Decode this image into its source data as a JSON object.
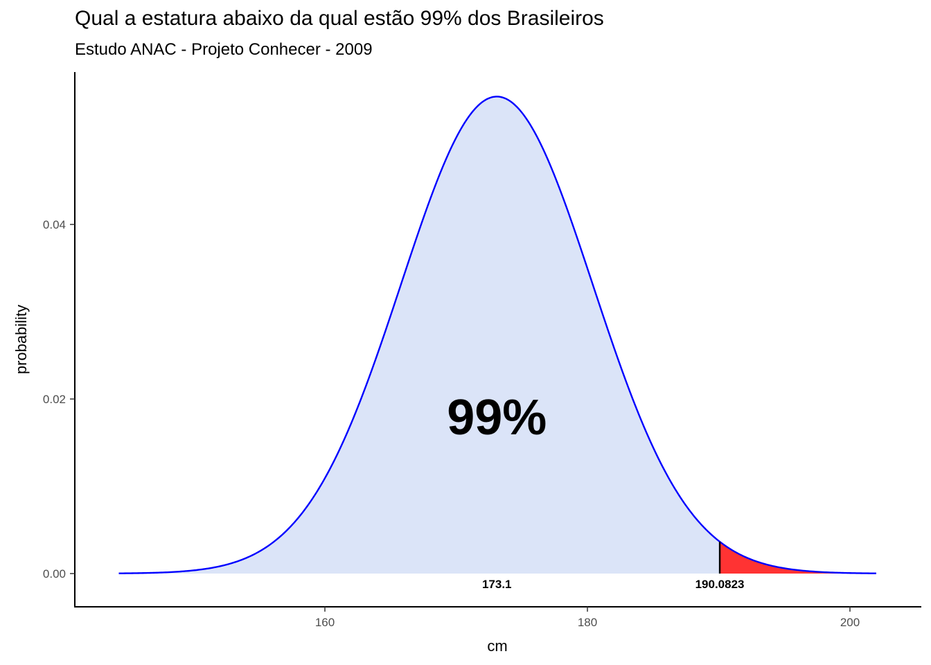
{
  "chart_data": {
    "type": "area",
    "title": "Qual a estatura abaixo da qual estão 99% dos Brasileiros",
    "subtitle": "Estudo ANAC - Projeto Conhecer - 2009",
    "xlabel": "cm",
    "ylabel": "probability",
    "distribution": {
      "name": "normal",
      "mean": 173.1,
      "sd": 7.3
    },
    "xlim": [
      143,
      202
    ],
    "ylim": [
      0,
      0.055
    ],
    "x_ticks": [
      160,
      180,
      200
    ],
    "x_tick_labels": [
      "160",
      "180",
      "200"
    ],
    "y_ticks": [
      0.0,
      0.02,
      0.04
    ],
    "y_tick_labels": [
      "0.00",
      "0.02",
      "0.04"
    ],
    "cutoff": 190.0823,
    "shaded_region_label": "99%",
    "point_labels": [
      {
        "x": 173.1,
        "text": "173.1"
      },
      {
        "x": 190.0823,
        "text": "190.0823"
      }
    ],
    "colors": {
      "curve": "#0000ff",
      "fill_below": "#dbe4f8",
      "fill_tail": "#ff3333",
      "cutoff_line": "#000000"
    },
    "grid": false
  }
}
